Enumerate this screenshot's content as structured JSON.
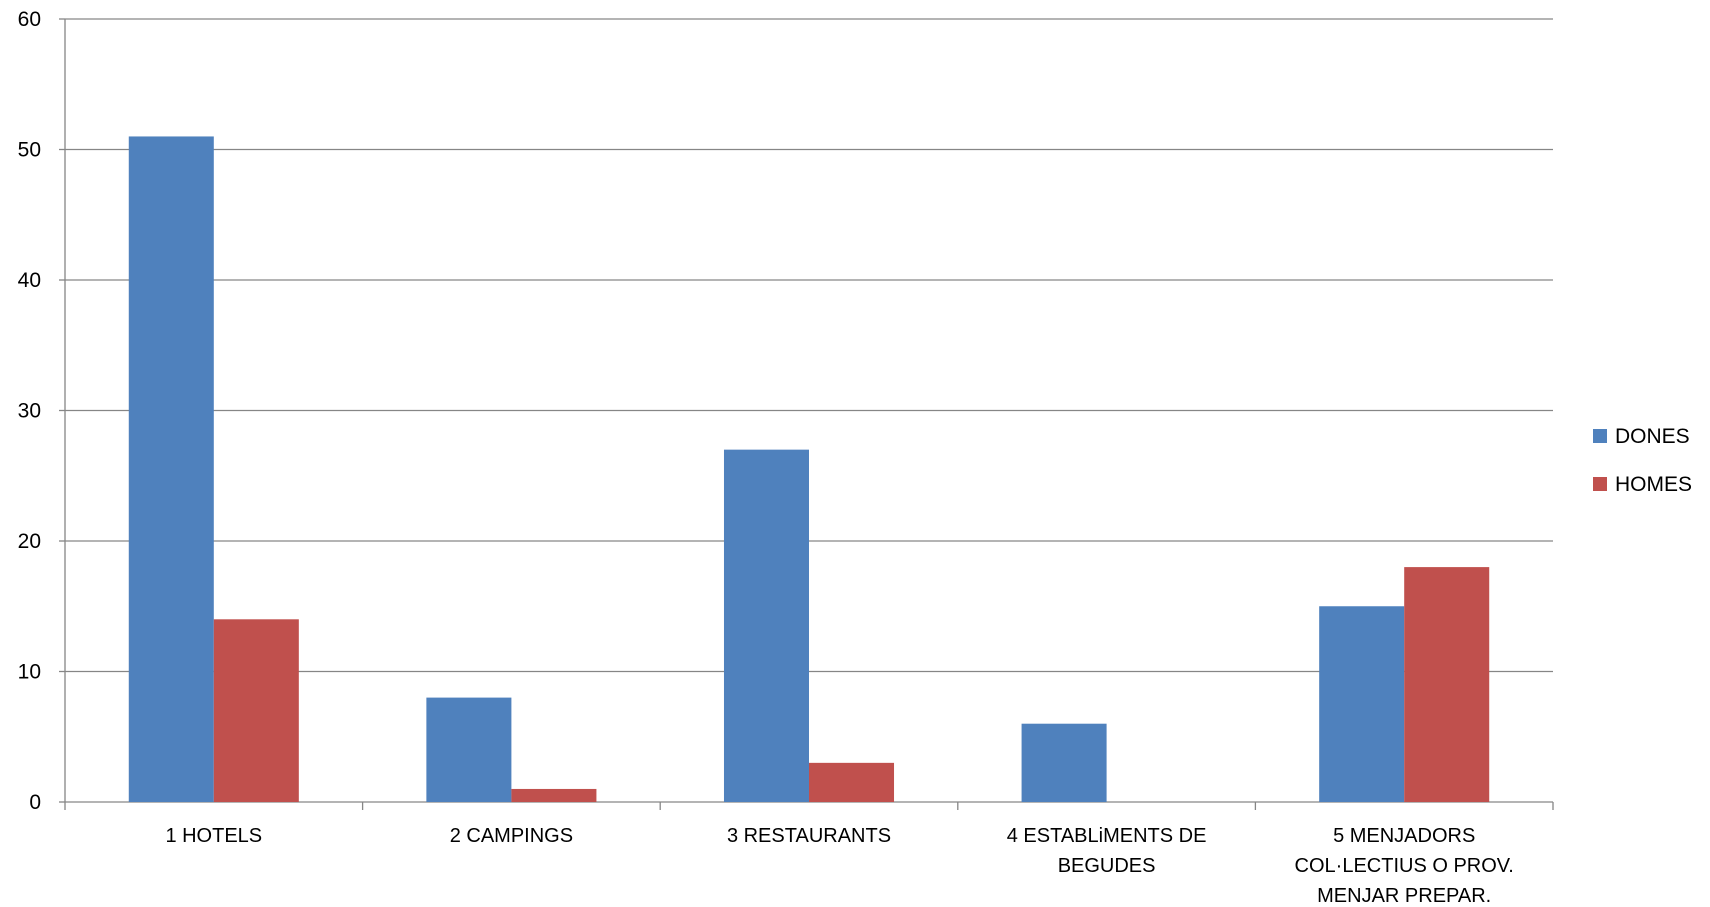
{
  "chart_data": {
    "type": "bar",
    "categories": [
      [
        "1 HOTELS"
      ],
      [
        "2 CAMPINGS"
      ],
      [
        "3 RESTAURANTS"
      ],
      [
        "4 ESTABLiMENTS DE",
        "BEGUDES"
      ],
      [
        "5 MENJADORS",
        "COL·LECTIUS O PROV.",
        "MENJAR PREPAR."
      ]
    ],
    "series": [
      {
        "name": "DONES",
        "color": "#4F81BD",
        "values": [
          51,
          8,
          27,
          6,
          15
        ]
      },
      {
        "name": "HOMES",
        "color": "#C0504D",
        "values": [
          14,
          1,
          3,
          0,
          18
        ]
      }
    ],
    "ylim": [
      0,
      60
    ],
    "yticks": [
      0,
      10,
      20,
      30,
      40,
      50,
      60
    ],
    "grid": true,
    "legend_position": "right",
    "title": "",
    "xlabel": "",
    "ylabel": ""
  }
}
